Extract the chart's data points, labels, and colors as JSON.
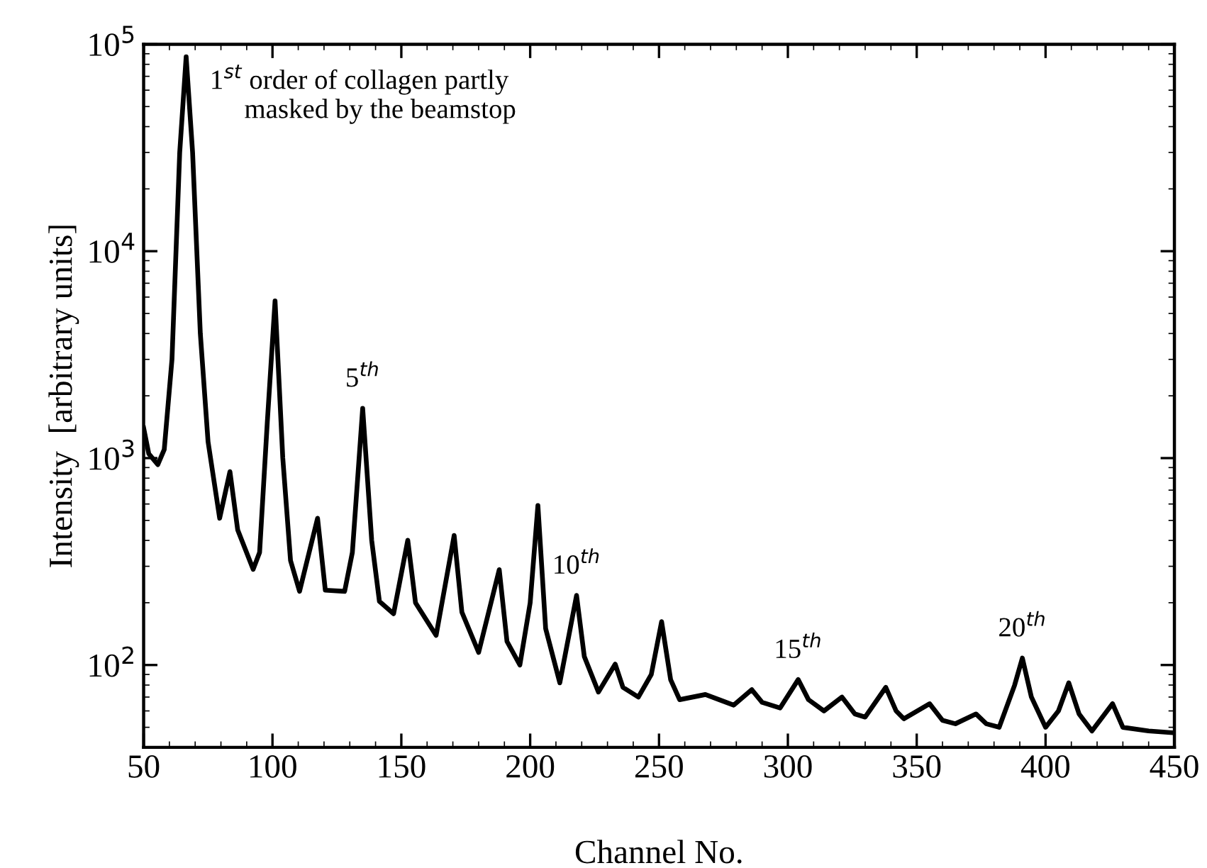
{
  "chart_data": {
    "type": "line",
    "xlabel": "Channel No.",
    "ylabel": "Intensity  [arbitrary units]",
    "series": [
      {
        "color": "#000000",
        "x": [
          50,
          52,
          55.5,
          58,
          61,
          64,
          66.5,
          69,
          72,
          75,
          79.5,
          83.5,
          86.5,
          92.5,
          95,
          98,
          101,
          104,
          107,
          110.5,
          117.5,
          120.5,
          128,
          131,
          135,
          138.5,
          141.5,
          147,
          152.5,
          155.5,
          163.5,
          170.5,
          173.5,
          180,
          188,
          191,
          196,
          200,
          203,
          206,
          211.5,
          218,
          221,
          226.5,
          233,
          236,
          242,
          247,
          251,
          254.5,
          258,
          268,
          279,
          286,
          290,
          297,
          304,
          308,
          314,
          321,
          326,
          330,
          338,
          342,
          345,
          355,
          360,
          365,
          373,
          377,
          382,
          388,
          391,
          394.5,
          400,
          405,
          409,
          413,
          418,
          426,
          430,
          440,
          450
        ],
        "values": [
          1400,
          1050,
          930,
          1100,
          3000,
          30000,
          87000,
          30000,
          4000,
          1200,
          512,
          860,
          450,
          290,
          350,
          1500,
          5750,
          1000,
          320,
          227,
          512,
          230,
          227,
          350,
          1740,
          400,
          203,
          177,
          401,
          200,
          139,
          423,
          180,
          115,
          289,
          130,
          100,
          200,
          590,
          150,
          82,
          217,
          110,
          74,
          101,
          78,
          70,
          90,
          162,
          85,
          68,
          72,
          64,
          76,
          66,
          62,
          85,
          68,
          60,
          70,
          58,
          56,
          78,
          60,
          55,
          65,
          54,
          52,
          58,
          52,
          50,
          80,
          108,
          70,
          50,
          60,
          82,
          58,
          48,
          65,
          50,
          48,
          47
        ]
      }
    ],
    "log": "y",
    "xlim": [
      50,
      450
    ],
    "xticks": [
      50,
      100,
      150,
      200,
      250,
      300,
      350,
      400,
      450
    ],
    "ylim": [
      40,
      100000
    ],
    "yticks": [
      {
        "value": 100,
        "label": "10$^{2}$"
      },
      {
        "value": 1000,
        "label": "10$^{3}$"
      },
      {
        "value": 10000,
        "label": "10$^{4}$"
      },
      {
        "value": 100000,
        "label": "10$^{5}$"
      }
    ],
    "grid": false,
    "legend": false,
    "marker": "none",
    "line_style": "solid",
    "annotations": [
      {
        "text": "1$^{st}$ order of collagen partly\n     masked by the beamstop",
        "x": 66.5,
        "y": 87000
      },
      {
        "text": "5$^{th}$",
        "x": 135,
        "y": 1740
      },
      {
        "text": "10$^{th}$",
        "x": 218,
        "y": 217
      },
      {
        "text": "15$^{th}$",
        "x": 304,
        "y": 85
      },
      {
        "text": "20$^{th}$",
        "x": 391,
        "y": 108
      }
    ]
  }
}
